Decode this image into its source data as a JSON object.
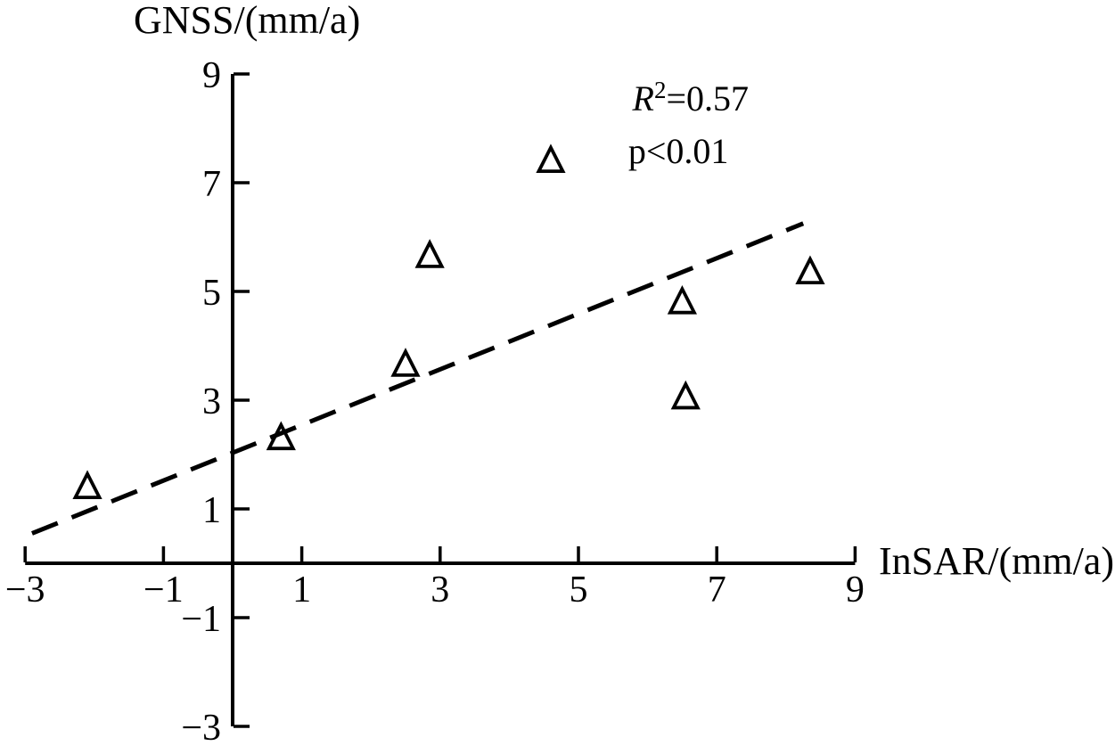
{
  "chart_data": {
    "type": "scatter",
    "title": "",
    "xlabel": "InSAR/(mm/a)",
    "ylabel": "GNSS/(mm/a)",
    "xlim": [
      -3,
      9
    ],
    "ylim": [
      -3,
      9
    ],
    "x_ticks": [
      -3,
      -1,
      1,
      3,
      5,
      7,
      9
    ],
    "y_ticks": [
      -3,
      -1,
      1,
      3,
      5,
      7,
      9
    ],
    "grid": false,
    "legend": "none",
    "marker": "open-triangle",
    "points": [
      {
        "x": -2.1,
        "y": 1.4
      },
      {
        "x": 0.7,
        "y": 2.3
      },
      {
        "x": 2.5,
        "y": 3.65
      },
      {
        "x": 2.85,
        "y": 5.65
      },
      {
        "x": 4.6,
        "y": 7.4
      },
      {
        "x": 6.5,
        "y": 4.8
      },
      {
        "x": 6.55,
        "y": 3.05
      },
      {
        "x": 8.35,
        "y": 5.35
      }
    ],
    "trend_line": {
      "style": "dashed",
      "x1": -2.9,
      "y1": 0.55,
      "x2": 8.25,
      "y2": 6.25
    },
    "annotations": [
      {
        "id": "r-squared",
        "text": "R²=0.57",
        "x": 5.78,
        "y": 8.33
      },
      {
        "id": "p-value",
        "text": "p<0.01",
        "x": 5.72,
        "y": 7.36
      }
    ],
    "colors": {
      "stroke": "#000000",
      "background": "#ffffff"
    }
  }
}
